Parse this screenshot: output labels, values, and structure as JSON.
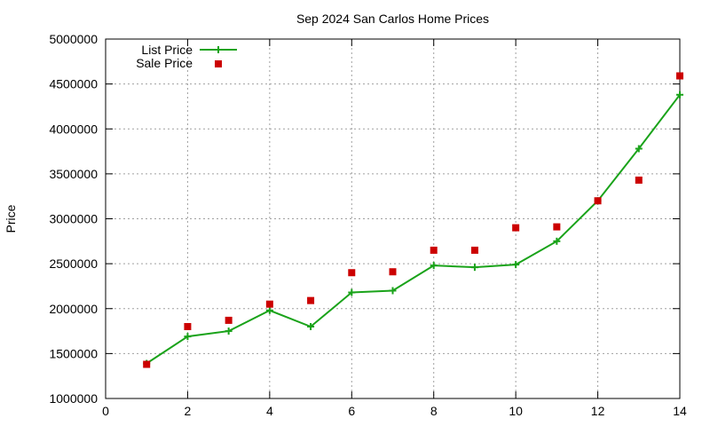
{
  "chart_data": {
    "type": "line",
    "title": "Sep 2024 San Carlos Home Prices",
    "xlabel": "",
    "ylabel": "Price",
    "xlim": [
      0,
      14
    ],
    "ylim": [
      1000000,
      5000000
    ],
    "x_ticks": [
      0,
      2,
      4,
      6,
      8,
      10,
      12,
      14
    ],
    "y_ticks": [
      1000000,
      1500000,
      2000000,
      2500000,
      3000000,
      3500000,
      4000000,
      4500000,
      5000000
    ],
    "grid": true,
    "legend_position": "top-left",
    "x": [
      1,
      2,
      3,
      4,
      5,
      6,
      7,
      8,
      9,
      10,
      11,
      12,
      13,
      14
    ],
    "series": [
      {
        "name": "List Price",
        "style": "line-with-plus-markers",
        "color": "#1aa31a",
        "values": [
          1390000,
          1690000,
          1750000,
          1980000,
          1800000,
          2180000,
          2200000,
          2480000,
          2460000,
          2490000,
          2750000,
          3200000,
          3780000,
          4380000
        ]
      },
      {
        "name": "Sale Price",
        "style": "square-markers",
        "color": "#cc0000",
        "values": [
          1380000,
          1800000,
          1870000,
          2050000,
          2090000,
          2400000,
          2410000,
          2650000,
          2650000,
          2900000,
          2910000,
          3200000,
          3430000,
          4590000
        ]
      }
    ]
  }
}
